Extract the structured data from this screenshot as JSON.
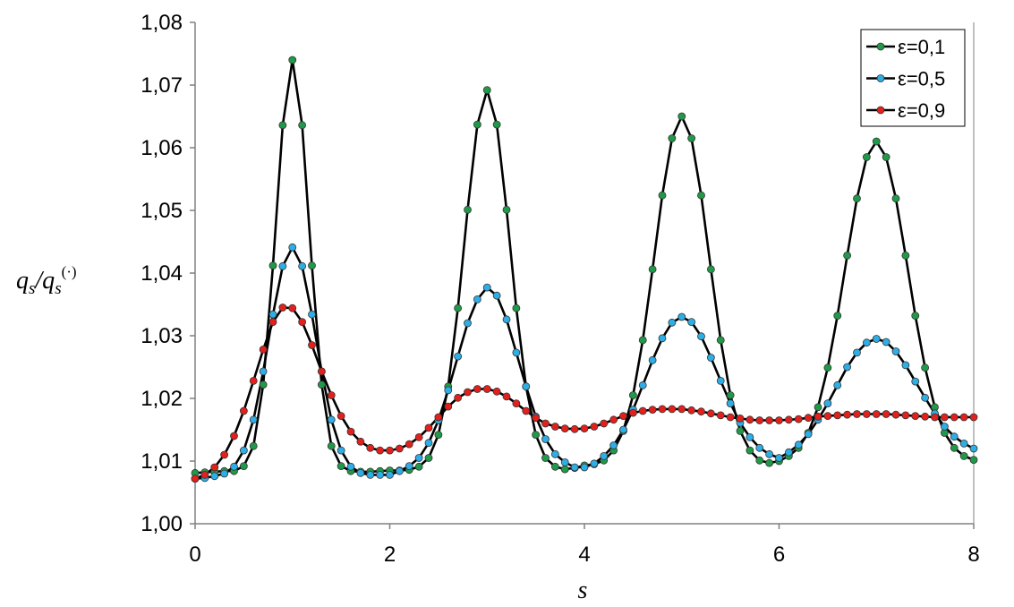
{
  "chart_data": {
    "type": "line",
    "ylabel": [
      "q",
      "s",
      "/q",
      "s",
      "(·)"
    ],
    "xlabel": "s",
    "xlim": [
      0,
      8
    ],
    "ylim": [
      1,
      1.08
    ],
    "xticks": [
      0,
      2,
      4,
      6,
      8
    ],
    "yticks": [
      {
        "value": 1.0,
        "label": "1,00"
      },
      {
        "value": 1.01,
        "label": "1,01"
      },
      {
        "value": 1.02,
        "label": "1,02"
      },
      {
        "value": 1.03,
        "label": "1,03"
      },
      {
        "value": 1.04,
        "label": "1,04"
      },
      {
        "value": 1.05,
        "label": "1,05"
      },
      {
        "value": 1.06,
        "label": "1,06"
      },
      {
        "value": 1.07,
        "label": "1,07"
      },
      {
        "value": 1.08,
        "label": "1,08"
      }
    ],
    "legend": "upper right",
    "line_color": "#000000",
    "x": [
      0,
      0.1,
      0.2,
      0.3,
      0.4,
      0.5,
      0.6,
      0.7,
      0.8,
      0.9,
      1,
      1.1,
      1.2,
      1.3,
      1.4,
      1.5,
      1.6,
      1.7,
      1.8,
      1.9,
      2,
      2.1,
      2.2,
      2.3,
      2.4,
      2.5,
      2.6,
      2.7,
      2.8,
      2.9,
      3,
      3.1,
      3.2,
      3.3,
      3.4,
      3.5,
      3.6,
      3.7,
      3.8,
      3.9,
      4,
      4.1,
      4.2,
      4.3,
      4.4,
      4.5,
      4.6,
      4.7,
      4.8,
      4.9,
      5,
      5.1,
      5.2,
      5.3,
      5.4,
      5.5,
      5.6,
      5.7,
      5.8,
      5.9,
      6,
      6.1,
      6.2,
      6.3,
      6.4,
      6.5,
      6.6,
      6.7,
      6.8,
      6.9,
      7,
      7.1,
      7.2,
      7.3,
      7.4,
      7.5,
      7.6,
      7.7,
      7.8,
      7.9,
      8
    ],
    "series": [
      {
        "name": "ε=0,1",
        "color": "#1f9a48",
        "values": [
          1.0081,
          1.0082,
          1.0083,
          1.0084,
          1.0084,
          1.0092,
          1.0124,
          1.0222,
          1.0412,
          1.0636,
          1.074,
          1.0636,
          1.0412,
          1.0222,
          1.0124,
          1.0092,
          1.0084,
          1.0083,
          1.0083,
          1.0084,
          1.0085,
          1.0085,
          1.0086,
          1.0091,
          1.0105,
          1.0142,
          1.0219,
          1.0344,
          1.0501,
          1.0637,
          1.0692,
          1.0637,
          1.0501,
          1.0344,
          1.0219,
          1.0142,
          1.0105,
          1.0091,
          1.0087,
          1.0089,
          1.0093,
          1.0095,
          1.0101,
          1.0117,
          1.0148,
          1.0205,
          1.0293,
          1.0406,
          1.0524,
          1.0615,
          1.065,
          1.0615,
          1.0524,
          1.0406,
          1.0293,
          1.0205,
          1.0148,
          1.0117,
          1.0101,
          1.0097,
          1.01,
          1.0108,
          1.0121,
          1.0145,
          1.0186,
          1.0249,
          1.0332,
          1.0428,
          1.0519,
          1.0585,
          1.061,
          1.0585,
          1.0519,
          1.0428,
          1.0332,
          1.0249,
          1.0186,
          1.0145,
          1.0121,
          1.0108,
          1.0102
        ]
      },
      {
        "name": "ε=0,5",
        "color": "#2eaee6",
        "values": [
          1.0072,
          1.0073,
          1.0076,
          1.008,
          1.0091,
          1.0117,
          1.0166,
          1.0243,
          1.0334,
          1.0411,
          1.0441,
          1.0411,
          1.0334,
          1.0243,
          1.0166,
          1.0117,
          1.0091,
          1.0081,
          1.0078,
          1.0078,
          1.0078,
          1.0084,
          1.0092,
          1.0105,
          1.0129,
          1.0165,
          1.0213,
          1.0267,
          1.032,
          1.0358,
          1.0377,
          1.0364,
          1.0326,
          1.0273,
          1.0219,
          1.0171,
          1.0135,
          1.0111,
          1.0098,
          1.009,
          1.009,
          1.0096,
          1.0108,
          1.0125,
          1.015,
          1.0182,
          1.0221,
          1.0261,
          1.0296,
          1.0321,
          1.033,
          1.0322,
          1.0299,
          1.0265,
          1.0228,
          1.0192,
          1.0161,
          1.0138,
          1.0121,
          1.0111,
          1.0105,
          1.0114,
          1.0126,
          1.0143,
          1.0166,
          1.0192,
          1.0221,
          1.025,
          1.0273,
          1.0289,
          1.0295,
          1.029,
          1.0275,
          1.0253,
          1.0227,
          1.0201,
          1.0176,
          1.0155,
          1.0139,
          1.0128,
          1.012
        ]
      },
      {
        "name": "ε=0,9",
        "color": "#e3201c",
        "values": [
          1.0072,
          1.0078,
          1.009,
          1.011,
          1.014,
          1.018,
          1.0228,
          1.0278,
          1.0322,
          1.0345,
          1.0344,
          1.0322,
          1.0285,
          1.0243,
          1.0205,
          1.0172,
          1.0147,
          1.0131,
          1.0121,
          1.0117,
          1.0117,
          1.012,
          1.0127,
          1.0138,
          1.0153,
          1.017,
          1.0187,
          1.0201,
          1.021,
          1.0215,
          1.0215,
          1.0211,
          1.0203,
          1.0192,
          1.018,
          1.0169,
          1.016,
          1.0155,
          1.0152,
          1.0151,
          1.0152,
          1.0155,
          1.016,
          1.0166,
          1.0172,
          1.0177,
          1.018,
          1.0182,
          1.0183,
          1.0183,
          1.0183,
          1.0181,
          1.0179,
          1.0176,
          1.0173,
          1.017,
          1.0168,
          1.0166,
          1.0165,
          1.0165,
          1.0165,
          1.0166,
          1.0167,
          1.0169,
          1.0171,
          1.0172,
          1.0173,
          1.0174,
          1.0175,
          1.0175,
          1.0175,
          1.0175,
          1.0174,
          1.0173,
          1.0172,
          1.0171,
          1.017,
          1.017,
          1.017,
          1.017,
          1.017
        ]
      }
    ]
  }
}
